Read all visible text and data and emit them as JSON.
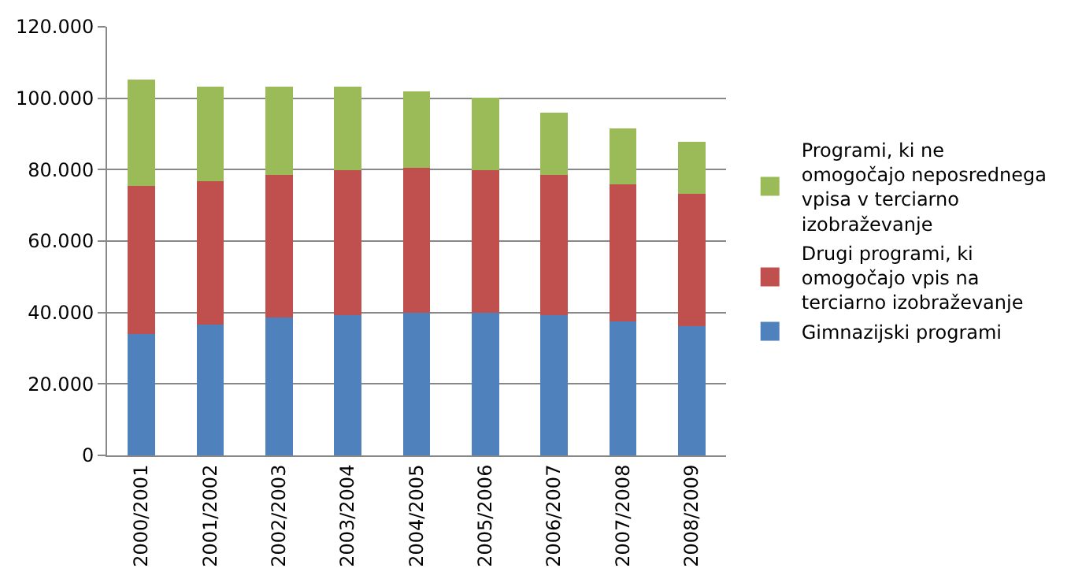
{
  "chart_data": {
    "type": "bar",
    "stacked": true,
    "categories": [
      "2000/2001",
      "2001/2002",
      "2002/2003",
      "2003/2004",
      "2004/2005",
      "2005/2006",
      "2006/2007",
      "2007/2008",
      "2008/2009"
    ],
    "series": [
      {
        "name": "Gimnazijski programi",
        "color": "#4f81bd",
        "values": [
          34000,
          36700,
          38700,
          39300,
          40000,
          40000,
          39300,
          37400,
          36100
        ]
      },
      {
        "name": "Drugi programi, ki omogočajo vpis na terciarno izobraževanje",
        "color": "#c0504d",
        "values": [
          41500,
          40000,
          39900,
          40600,
          40600,
          39900,
          39300,
          38500,
          37100
        ]
      },
      {
        "name": "Programi, ki ne omogočajo neposrednega vpisa v terciarno izobraževanje",
        "color": "#9bbb59",
        "values": [
          29700,
          26600,
          24700,
          23400,
          21400,
          20200,
          17400,
          15700,
          14500
        ]
      }
    ],
    "ylim": [
      0,
      120000
    ],
    "yticks": [
      0,
      {
        "value": 20000,
        "label": "20.000"
      },
      {
        "value": 40000,
        "label": "40.000"
      },
      {
        "value": 60000,
        "label": "60.000"
      },
      {
        "value": 80000,
        "label": "80.000"
      },
      {
        "value": 100000,
        "label": "100.000"
      },
      {
        "value": 120000,
        "label": "120.000"
      }
    ],
    "grid": "y",
    "legend": "right"
  }
}
